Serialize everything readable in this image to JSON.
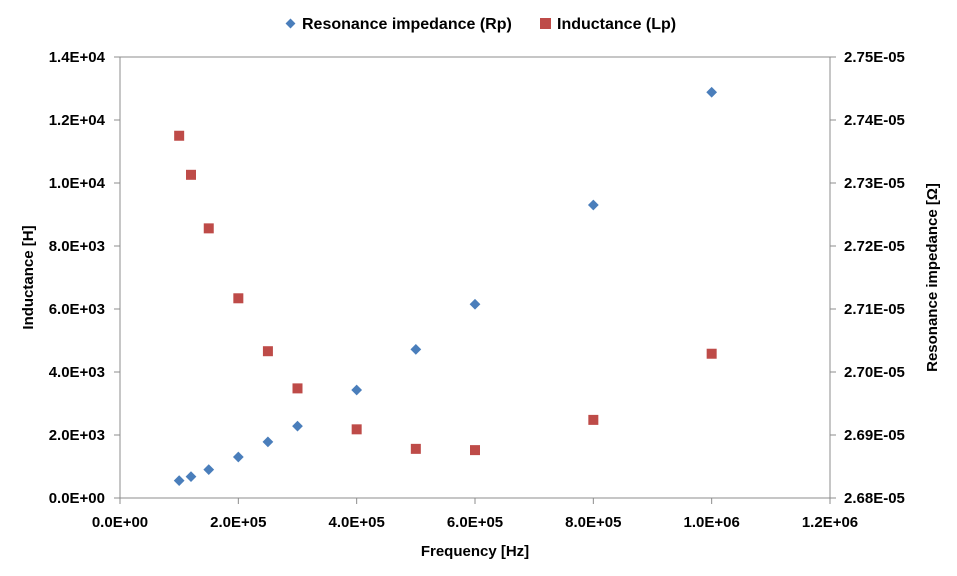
{
  "chart_data": {
    "type": "scatter",
    "xlabel": "Frequency [Hz]",
    "ylabel_left": "Inductance [H]",
    "ylabel_right": "Resonance impedance [Ω]",
    "xlim": [
      0,
      1200000
    ],
    "ylim_left": [
      0,
      14000
    ],
    "ylim_right": [
      2.68e-05,
      2.75e-05
    ],
    "x_ticks": [
      0,
      200000,
      400000,
      600000,
      800000,
      1000000,
      1200000
    ],
    "x_tick_labels": [
      "0.0E+00",
      "2.0E+05",
      "4.0E+05",
      "6.0E+05",
      "8.0E+05",
      "1.0E+06",
      "1.2E+06"
    ],
    "y_left_ticks": [
      0,
      2000,
      4000,
      6000,
      8000,
      10000,
      12000,
      14000
    ],
    "y_left_tick_labels": [
      "0.0E+00",
      "2.0E+03",
      "4.0E+03",
      "6.0E+03",
      "8.0E+03",
      "1.0E+04",
      "1.2E+04",
      "1.4E+04"
    ],
    "y_right_ticks": [
      2.68e-05,
      2.69e-05,
      2.7e-05,
      2.71e-05,
      2.72e-05,
      2.73e-05,
      2.74e-05,
      2.75e-05
    ],
    "y_right_tick_labels": [
      "2.68E-05",
      "2.69E-05",
      "2.70E-05",
      "2.71E-05",
      "2.72E-05",
      "2.73E-05",
      "2.74E-05",
      "2.75E-05"
    ],
    "grid": false,
    "legend_position": "top-center",
    "series": [
      {
        "name": "Resonance impedance (Rp)",
        "axis": "left",
        "marker": "diamond",
        "color": "#4a7ebb",
        "x": [
          100000,
          120000,
          150000,
          200000,
          250000,
          300000,
          400000,
          500000,
          600000,
          800000,
          1000000
        ],
        "y": [
          550,
          680,
          900,
          1300,
          1780,
          2280,
          3430,
          4720,
          6150,
          9300,
          12880
        ]
      },
      {
        "name": "Inductance (Lp)",
        "axis": "right",
        "marker": "square",
        "color": "#be4b48",
        "x": [
          100000,
          120000,
          150000,
          200000,
          250000,
          300000,
          400000,
          500000,
          600000,
          800000,
          1000000
        ],
        "y": [
          2.7375e-05,
          2.7313e-05,
          2.7228e-05,
          2.7117e-05,
          2.7033e-05,
          2.6974e-05,
          2.6909e-05,
          2.6878e-05,
          2.6876e-05,
          2.6924e-05,
          2.7029e-05
        ]
      }
    ]
  }
}
